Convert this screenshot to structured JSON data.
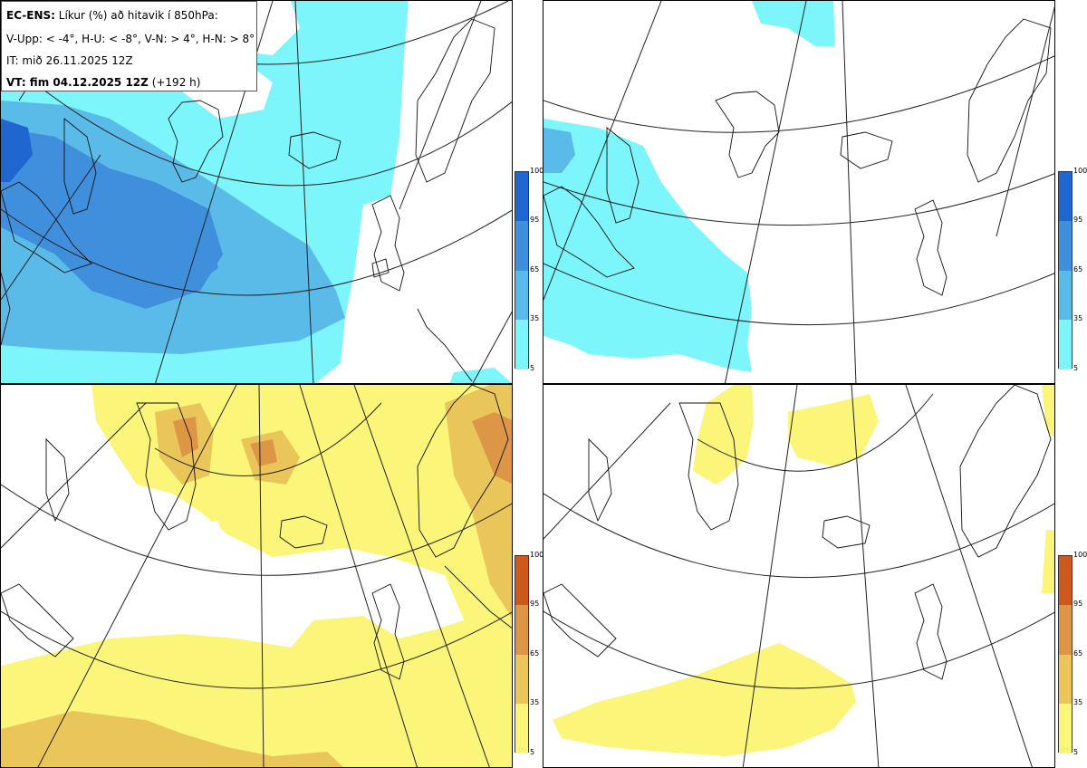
{
  "header": {
    "line1_bold": "EC-ENS:",
    "line1_rest": " Líkur (%) að hitavik í 850hPa:",
    "line2": "V-Upp: < -4°, H-U: < -8°, V-N: > 4°, H-N: > 8°",
    "line3": "IT: mið 26.11.2025 12Z",
    "line4_bold": "VT: fim 04.12.2025 12Z",
    "line4_rest": " (+192 h)"
  },
  "legend_cold": {
    "ticks": [
      "100",
      "95",
      "65",
      "35",
      "5"
    ],
    "colors": [
      "#1f66d0",
      "#3f8fdc",
      "#5bbbe8",
      "#7cf5fb"
    ]
  },
  "legend_warm": {
    "ticks": [
      "100",
      "95",
      "65",
      "35",
      "5"
    ],
    "colors": [
      "#cd5a1c",
      "#dc9646",
      "#eac55a",
      "#fbf57a"
    ]
  },
  "panels": [
    {
      "name": "V-Upp",
      "field": "cold",
      "threshold": "< -4°"
    },
    {
      "name": "H-U",
      "field": "cold",
      "threshold": "< -8°"
    },
    {
      "name": "V-N",
      "field": "warm",
      "threshold": "> 4°"
    },
    {
      "name": "H-N",
      "field": "warm",
      "threshold": "> 8°"
    }
  ]
}
